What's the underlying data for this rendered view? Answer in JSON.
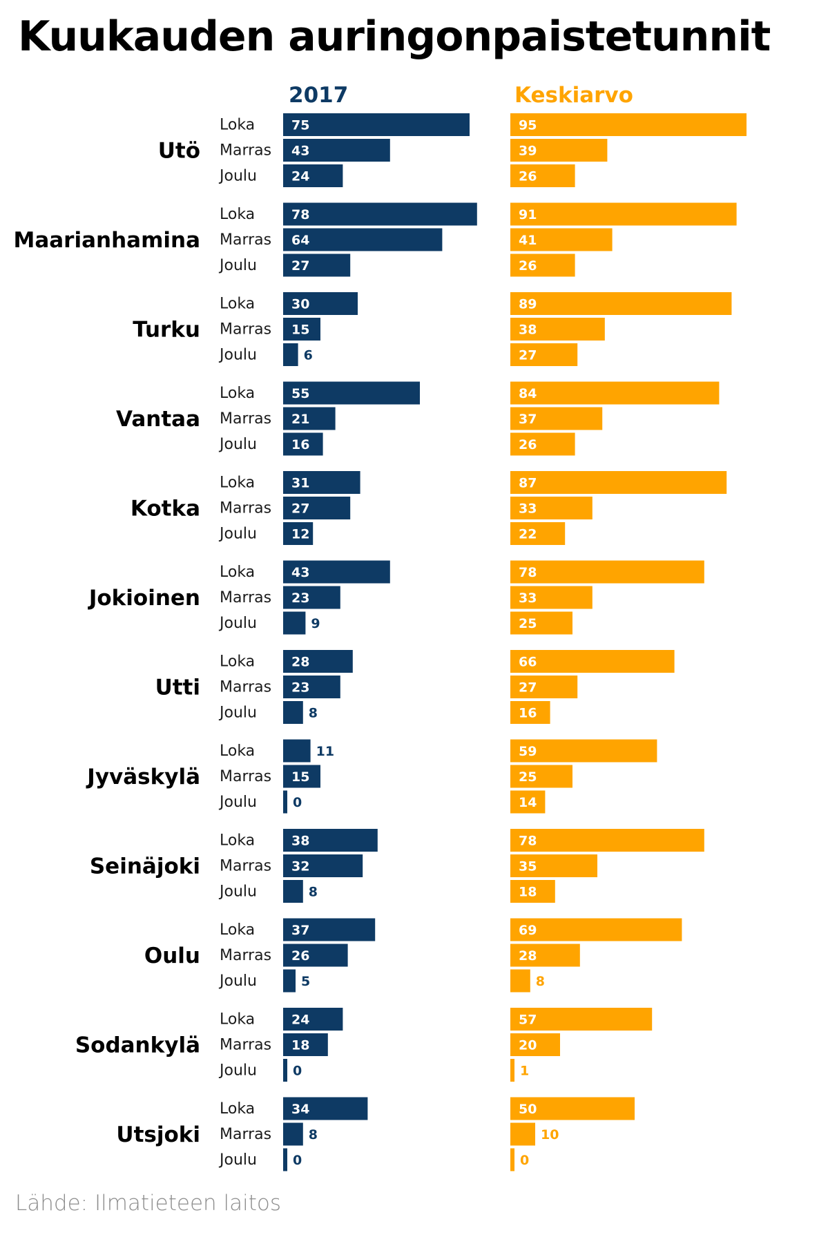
{
  "chart_data": {
    "type": "bar",
    "orientation": "horizontal",
    "title": "Kuukauden auringonpaistetunnit",
    "months": [
      "Loka",
      "Marras",
      "Joulu"
    ],
    "categories": [
      "Utö",
      "Maarianhamina",
      "Turku",
      "Vantaa",
      "Kotka",
      "Jokioinen",
      "Utti",
      "Jyväskylä",
      "Seinäjoki",
      "Oulu",
      "Sodankylä",
      "Utsjoki"
    ],
    "series": [
      {
        "name": "2017",
        "color": "#0e3a64",
        "values": [
          [
            75,
            43,
            24
          ],
          [
            78,
            64,
            27
          ],
          [
            30,
            15,
            6
          ],
          [
            55,
            21,
            16
          ],
          [
            31,
            27,
            12
          ],
          [
            43,
            23,
            9
          ],
          [
            28,
            23,
            8
          ],
          [
            11,
            15,
            0
          ],
          [
            38,
            32,
            8
          ],
          [
            37,
            26,
            5
          ],
          [
            24,
            18,
            0
          ],
          [
            34,
            8,
            0
          ]
        ]
      },
      {
        "name": "Keskiarvo",
        "color": "#ffa400",
        "values": [
          [
            95,
            39,
            26
          ],
          [
            91,
            41,
            26
          ],
          [
            89,
            38,
            27
          ],
          [
            84,
            37,
            26
          ],
          [
            87,
            33,
            22
          ],
          [
            78,
            33,
            25
          ],
          [
            66,
            27,
            16
          ],
          [
            59,
            25,
            14
          ],
          [
            78,
            35,
            18
          ],
          [
            69,
            28,
            8
          ],
          [
            57,
            20,
            1
          ],
          [
            50,
            10,
            0
          ]
        ]
      }
    ],
    "xlim": [
      0,
      95
    ],
    "source": "Lähde: Ilmatieteen laitos"
  }
}
